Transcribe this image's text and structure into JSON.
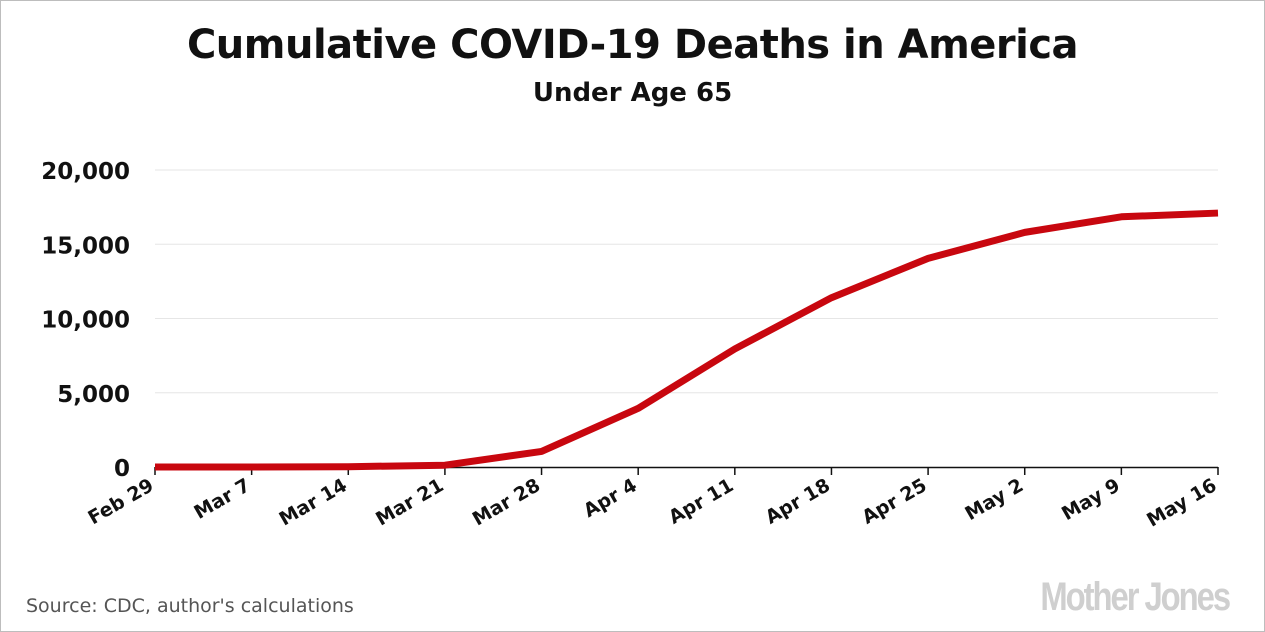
{
  "chart_data": {
    "type": "line",
    "title": "Cumulative COVID-19 Deaths in America",
    "subtitle": "Under Age 65",
    "xlabel": "",
    "ylabel": "",
    "categories": [
      "Feb 29",
      "Mar 7",
      "Mar 14",
      "Mar 21",
      "Mar 28",
      "Apr 4",
      "Apr 11",
      "Apr 18",
      "Apr 25",
      "May 2",
      "May 9",
      "May 16"
    ],
    "series": [
      {
        "values": [
          0,
          0,
          20,
          120,
          1050,
          3950,
          7950,
          11400,
          14050,
          15800,
          16850,
          17100
        ]
      }
    ],
    "ylim": [
      0,
      20000
    ],
    "yticks": [
      0,
      5000,
      10000,
      15000,
      20000
    ],
    "ytick_labels": [
      "0",
      "5,000",
      "10,000",
      "15,000",
      "20,000"
    ],
    "grid": true,
    "legend": "none",
    "colors": {
      "line": "#c8070f",
      "grid": "#e6e6e6",
      "axis": "#111111"
    }
  },
  "source": "Source: CDC, author's calculations",
  "logo": "Mother Jones"
}
